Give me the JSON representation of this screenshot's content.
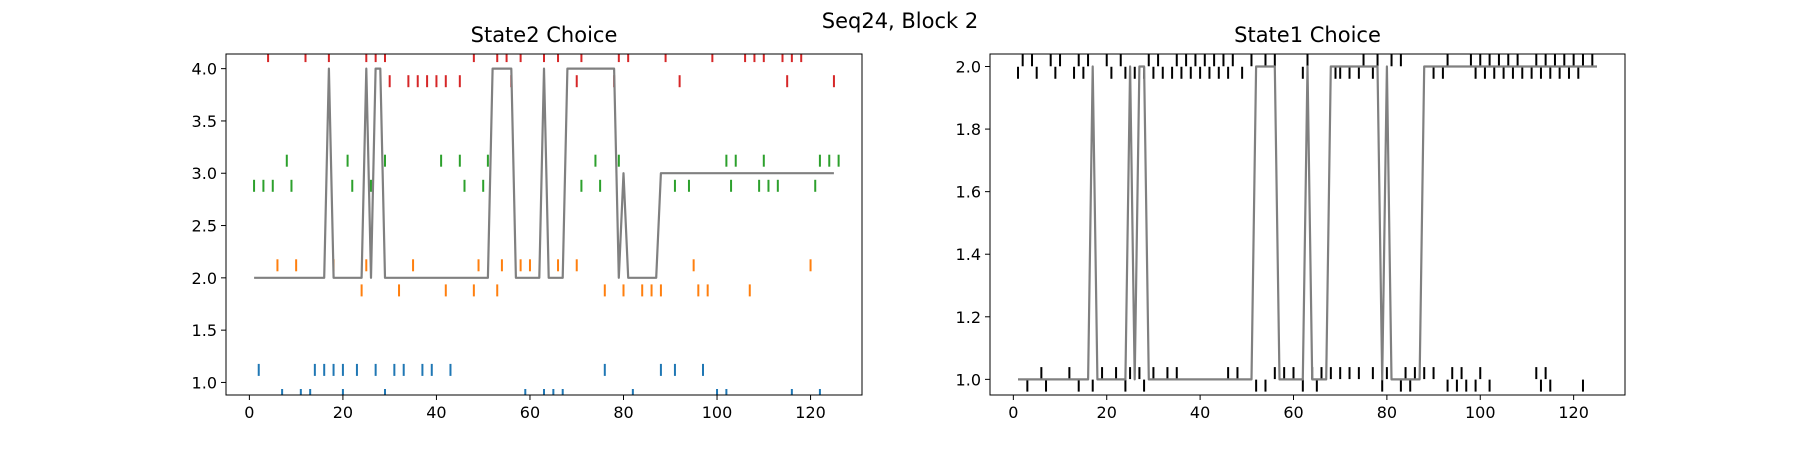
{
  "figure_title": "Seq24, Block 2",
  "colors": {
    "choice_line": "#808080",
    "state1_marks": "#000000",
    "red": "#d62728",
    "green": "#2ca02c",
    "orange": "#ff7f0e",
    "blue": "#1f77b4"
  },
  "chart_data": [
    {
      "type": "line",
      "title": "State2 Choice",
      "xlabel": "",
      "ylabel": "",
      "xlim": [
        -5,
        131
      ],
      "ylim": [
        0.88,
        4.14
      ],
      "xticks": [
        0,
        20,
        40,
        60,
        80,
        100,
        120
      ],
      "yticks": [
        1.0,
        1.5,
        2.0,
        2.5,
        3.0,
        3.5,
        4.0
      ],
      "ytick_labels": [
        "1.0",
        "1.5",
        "2.0",
        "2.5",
        "3.0",
        "3.5",
        "4.0"
      ],
      "xtick_labels": [
        "0",
        "20",
        "40",
        "60",
        "80",
        "100",
        "120"
      ],
      "grid": false,
      "choice_line": {
        "x": [
          1,
          16,
          17,
          18,
          24,
          25,
          26,
          27,
          28,
          29,
          51,
          52,
          56,
          57,
          62,
          63,
          64,
          67,
          68,
          78,
          79,
          80,
          81,
          82,
          87,
          88,
          125
        ],
        "y": [
          2,
          2,
          4,
          2,
          2,
          4,
          2,
          4,
          4,
          2,
          2,
          4,
          4,
          2,
          2,
          4,
          2,
          2,
          4,
          4,
          2,
          3,
          2,
          2,
          2,
          3,
          3
        ]
      },
      "marker_series": [
        {
          "color": "red",
          "level": 4,
          "jitter": 0.12,
          "x": [
            4,
            12,
            17,
            25,
            27,
            29,
            48,
            53,
            55,
            58,
            63,
            66,
            71,
            79,
            81,
            89,
            99,
            106,
            108,
            110,
            114,
            116,
            118
          ]
        },
        {
          "color": "red",
          "level": 4,
          "jitter": -0.12,
          "x": [
            30,
            34,
            36,
            38,
            40,
            42,
            45,
            56,
            70,
            78,
            92,
            115,
            125
          ]
        },
        {
          "color": "green",
          "level": 3,
          "jitter": 0.12,
          "x": [
            8,
            21,
            29,
            41,
            45,
            51,
            74,
            79,
            102,
            104,
            110,
            122,
            124,
            126
          ]
        },
        {
          "color": "green",
          "level": 3,
          "jitter": -0.12,
          "x": [
            1,
            3,
            5,
            9,
            22,
            26,
            46,
            50,
            71,
            75,
            91,
            94,
            103,
            109,
            111,
            113,
            121
          ]
        },
        {
          "color": "orange",
          "level": 2,
          "jitter": 0.12,
          "x": [
            6,
            10,
            18,
            25,
            35,
            49,
            54,
            58,
            60,
            66,
            70,
            95,
            120
          ]
        },
        {
          "color": "orange",
          "level": 2,
          "jitter": -0.12,
          "x": [
            24,
            32,
            42,
            48,
            53,
            76,
            80,
            84,
            86,
            88,
            96,
            98,
            107
          ]
        },
        {
          "color": "blue",
          "level": 1,
          "jitter": 0.12,
          "x": [
            2,
            14,
            16,
            18,
            20,
            23,
            27,
            31,
            33,
            37,
            39,
            43,
            76,
            88,
            91,
            97
          ]
        },
        {
          "color": "blue",
          "level": 1,
          "jitter": -0.12,
          "x": [
            7,
            11,
            13,
            20,
            29,
            59,
            63,
            65,
            67,
            82,
            100,
            102,
            116,
            122
          ]
        }
      ]
    },
    {
      "type": "line",
      "title": "State1 Choice",
      "xlabel": "",
      "ylabel": "",
      "xlim": [
        -5,
        131
      ],
      "ylim": [
        0.95,
        2.04
      ],
      "xticks": [
        0,
        20,
        40,
        60,
        80,
        100,
        120
      ],
      "yticks": [
        1.0,
        1.2,
        1.4,
        1.6,
        1.8,
        2.0
      ],
      "ytick_labels": [
        "1.0",
        "1.2",
        "1.4",
        "1.6",
        "1.8",
        "2.0"
      ],
      "xtick_labels": [
        "0",
        "20",
        "40",
        "60",
        "80",
        "100",
        "120"
      ],
      "grid": false,
      "choice_line": {
        "x": [
          1,
          16,
          17,
          18,
          24,
          25,
          26,
          27,
          28,
          29,
          51,
          52,
          56,
          57,
          62,
          63,
          64,
          67,
          68,
          78,
          79,
          80,
          81,
          82,
          87,
          88,
          125
        ],
        "y": [
          1,
          1,
          2,
          1,
          1,
          2,
          1,
          2,
          2,
          1,
          1,
          2,
          2,
          1,
          1,
          2,
          1,
          1,
          2,
          2,
          1,
          2,
          1,
          1,
          1,
          2,
          2
        ]
      },
      "marker_series": [
        {
          "color": "state1_marks",
          "level": 2,
          "jitter": 0.02,
          "x": [
            2,
            4,
            8,
            10,
            14,
            16,
            20,
            23,
            29,
            31,
            35,
            37,
            39,
            41,
            43,
            45,
            47,
            51,
            54,
            56,
            63,
            75,
            78,
            81,
            83,
            93,
            98,
            100,
            102,
            104,
            106,
            108,
            112,
            114,
            116,
            118,
            120,
            122,
            124
          ]
        },
        {
          "color": "state1_marks",
          "level": 2,
          "jitter": -0.02,
          "x": [
            1,
            5,
            9,
            13,
            15,
            21,
            24,
            26,
            28,
            30,
            32,
            34,
            36,
            38,
            40,
            42,
            44,
            46,
            49,
            62,
            69,
            70,
            72,
            74,
            77,
            90,
            92,
            99,
            101,
            103,
            105,
            107,
            109,
            111,
            113,
            115,
            117,
            119,
            121
          ]
        },
        {
          "color": "state1_marks",
          "level": 1,
          "jitter": 0.02,
          "x": [
            6,
            12,
            19,
            22,
            25,
            27,
            30,
            33,
            35,
            46,
            48,
            56,
            58,
            60,
            64,
            66,
            68,
            70,
            72,
            74,
            77,
            80,
            84,
            86,
            88,
            90,
            94,
            96,
            100,
            112,
            114
          ]
        },
        {
          "color": "state1_marks",
          "level": 1,
          "jitter": -0.02,
          "x": [
            3,
            7,
            14,
            17,
            24,
            28,
            52,
            54,
            62,
            65,
            79,
            83,
            85,
            93,
            95,
            97,
            99,
            102,
            113,
            115,
            122
          ]
        }
      ]
    }
  ]
}
